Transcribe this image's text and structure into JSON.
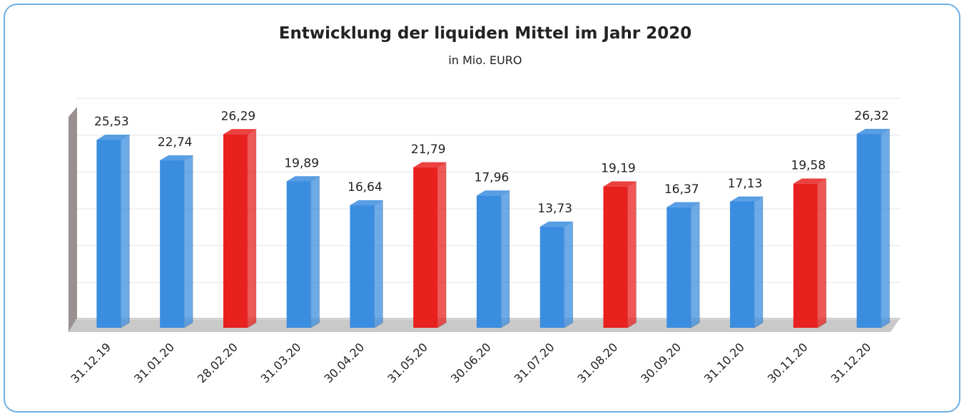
{
  "chart_data": {
    "type": "bar3d",
    "title": "Entwicklung der liquiden Mittel im Jahr 2020",
    "subtitle": "in Mio. EURO",
    "categories": [
      "31.12.19",
      "31.01.20",
      "28.02.20",
      "31.03.20",
      "30.04.20",
      "31.05.20",
      "30.06.20",
      "31.07.20",
      "31.08.20",
      "30.09.20",
      "31.10.20",
      "30.11.20",
      "31.12.20"
    ],
    "values": [
      25.53,
      22.74,
      26.29,
      19.89,
      16.64,
      21.79,
      17.96,
      13.73,
      19.19,
      16.37,
      17.13,
      19.58,
      26.32
    ],
    "value_labels": [
      "25,53",
      "22,74",
      "26,29",
      "19,89",
      "16,64",
      "21,79",
      "17,96",
      "13,73",
      "19,19",
      "16,37",
      "17,13",
      "19,58",
      "26,32"
    ],
    "colors": [
      "#3b8de0",
      "#3b8de0",
      "#e8211f",
      "#3b8de0",
      "#3b8de0",
      "#e8211f",
      "#3b8de0",
      "#3b8de0",
      "#e8211f",
      "#3b8de0",
      "#3b8de0",
      "#e8211f",
      "#3b8de0"
    ],
    "ylim": [
      0,
      30
    ],
    "yticks": [
      0,
      5,
      10,
      15,
      20,
      25,
      30
    ],
    "grid": true
  }
}
